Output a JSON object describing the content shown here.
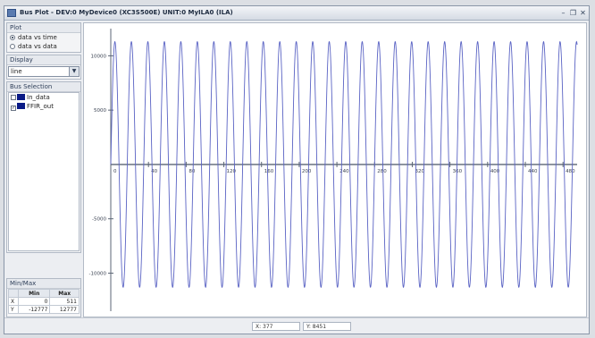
{
  "window": {
    "title": "Bus Plot - DEV:0 MyDevice0 (XC3S500E) UNIT:0 MyILA0 (ILA)"
  },
  "sidebar": {
    "plot": {
      "title": "Plot",
      "options": [
        "data vs time",
        "data vs data"
      ],
      "selected_index": 0
    },
    "display": {
      "title": "Display",
      "value": "line"
    },
    "bus_selection": {
      "title": "Bus Selection",
      "items": [
        {
          "label": "In_data",
          "checked": false,
          "color": "#0a1a86"
        },
        {
          "label": "FFIR_out",
          "checked": true,
          "color": "#0a1a86"
        }
      ]
    },
    "minmax": {
      "title": "Min/Max",
      "headers": [
        "Min",
        "Max"
      ],
      "rows": [
        {
          "label": "X",
          "min": "0",
          "max": "511"
        },
        {
          "label": "Y",
          "min": "-12777",
          "max": "12777"
        }
      ]
    }
  },
  "status": {
    "x_readout": "X: 377",
    "y_readout": "Y: 8451"
  },
  "chart_data": {
    "type": "line",
    "title": "",
    "xlabel": "",
    "ylabel": "",
    "x_ticks": [
      0,
      40,
      80,
      120,
      160,
      200,
      240,
      280,
      320,
      360,
      400,
      440,
      480
    ],
    "y_ticks": [
      -10000,
      -5000,
      0,
      5000,
      10000
    ],
    "xlim": [
      0,
      495
    ],
    "ylim": [
      -13500,
      12500
    ],
    "grid": false,
    "series": [
      {
        "color": "#5a63c4",
        "waveform": "sine",
        "amplitude": 11300,
        "period_samples": 17.5,
        "sample_start": 0,
        "sample_end": 495
      }
    ]
  }
}
